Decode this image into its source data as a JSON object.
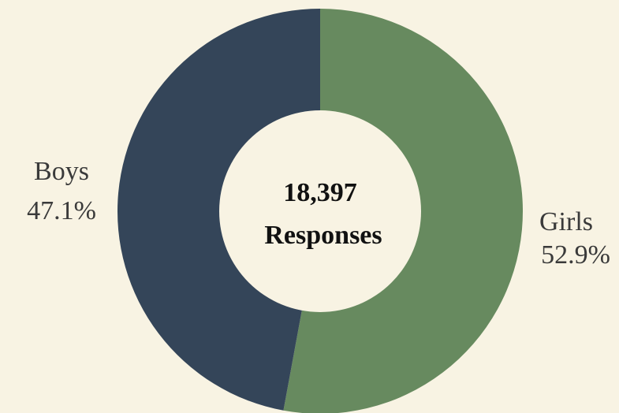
{
  "chart_data": {
    "type": "pie",
    "variant": "donut",
    "categories": [
      "Girls",
      "Boys"
    ],
    "values": [
      52.9,
      47.1
    ],
    "value_labels": [
      "52.9%",
      "47.1%"
    ],
    "colors": [
      "#678a5f",
      "#344559"
    ],
    "center_total": "18,397",
    "center_caption": "Responses",
    "legend": "none",
    "grid": false
  }
}
